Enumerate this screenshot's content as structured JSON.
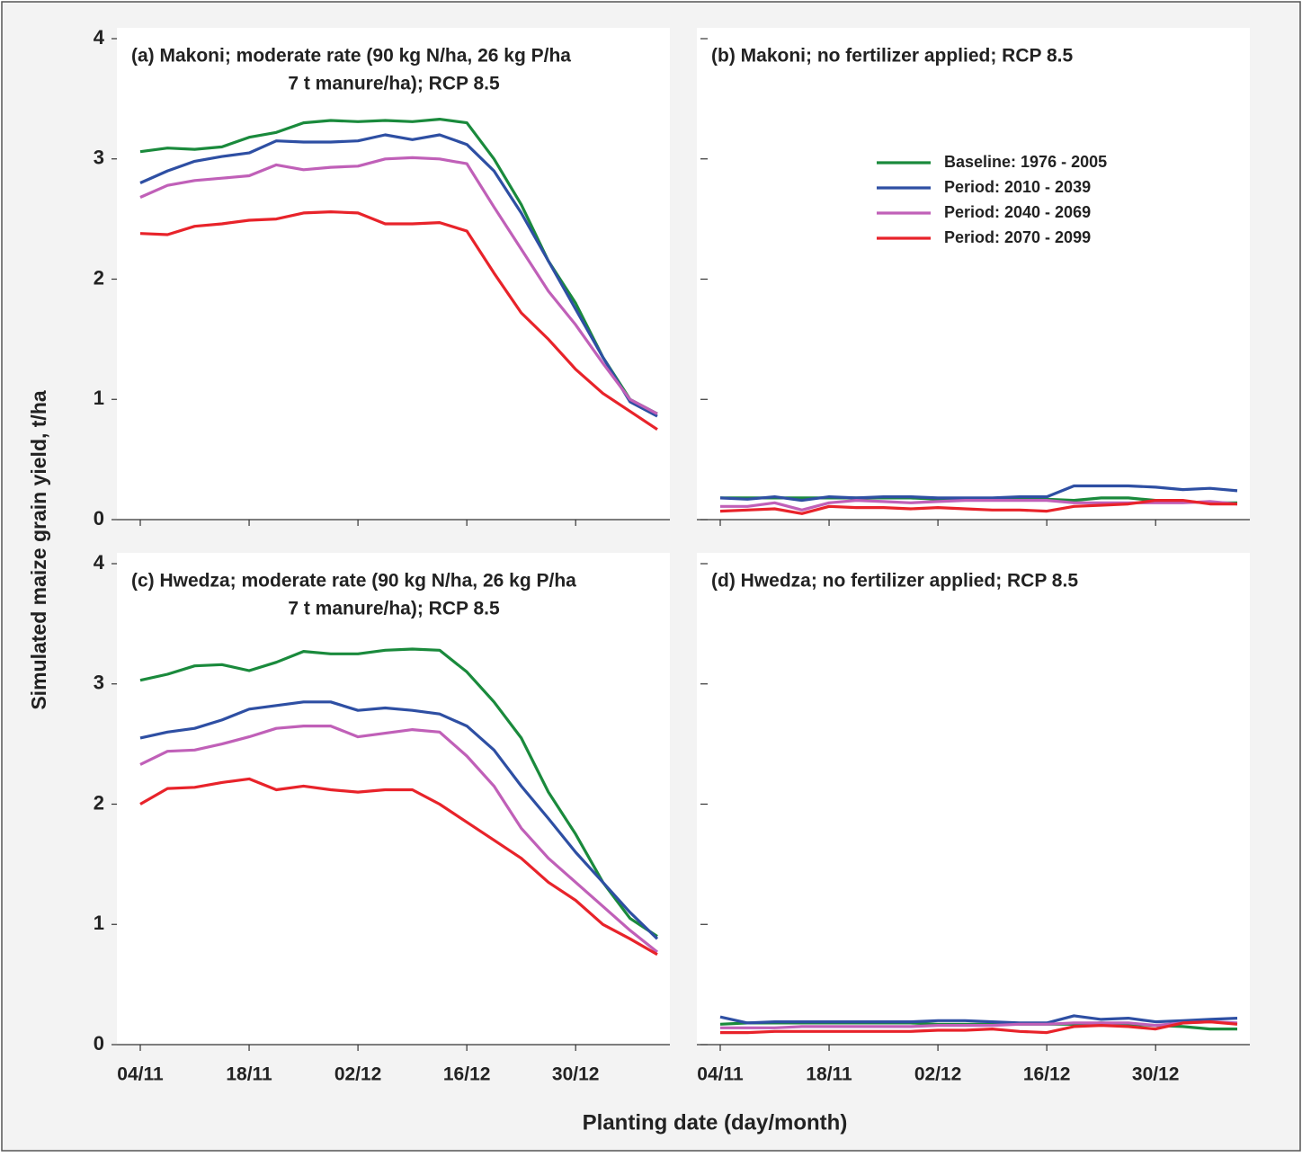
{
  "x_label": "Planting date (day/month)",
  "y_label": "Simulated maize grain yield, t/ha",
  "chart_data": [
    {
      "type": "line",
      "title": [
        "(a) Makoni; moderate rate (90 kg N/ha, 26 kg P/ha",
        "7 t manure/ha); RCP 8.5"
      ],
      "categories": [
        "04/11",
        null,
        null,
        null,
        "18/11",
        null,
        null,
        null,
        "02/12",
        null,
        null,
        null,
        "16/12",
        null,
        null,
        null,
        "30/12",
        null,
        null,
        null
      ],
      "xtick_labels": false,
      "ytick_labels": true,
      "ylim": [
        0,
        4
      ],
      "yticks": [
        0,
        1,
        2,
        3,
        4
      ],
      "series": [
        {
          "color": "#1a8a3c",
          "values": [
            3.06,
            3.09,
            3.08,
            3.1,
            3.18,
            3.22,
            3.3,
            3.32,
            3.31,
            3.32,
            3.31,
            3.33,
            3.3,
            3.0,
            2.62,
            2.15,
            1.8,
            1.35,
            1.0,
            0.88
          ]
        },
        {
          "color": "#2e4fa3",
          "values": [
            2.8,
            2.9,
            2.98,
            3.02,
            3.05,
            3.15,
            3.14,
            3.14,
            3.15,
            3.2,
            3.16,
            3.2,
            3.12,
            2.9,
            2.55,
            2.15,
            1.75,
            1.35,
            0.98,
            0.86
          ]
        },
        {
          "color": "#c060b8",
          "values": [
            2.68,
            2.78,
            2.82,
            2.84,
            2.86,
            2.95,
            2.91,
            2.93,
            2.94,
            3.0,
            3.01,
            3.0,
            2.96,
            2.6,
            2.25,
            1.9,
            1.62,
            1.3,
            1.0,
            0.88
          ]
        },
        {
          "color": "#e8232a",
          "values": [
            2.38,
            2.37,
            2.44,
            2.46,
            2.49,
            2.5,
            2.55,
            2.56,
            2.55,
            2.46,
            2.46,
            2.47,
            2.4,
            2.05,
            1.72,
            1.5,
            1.25,
            1.05,
            0.9,
            0.75
          ]
        }
      ]
    },
    {
      "type": "line",
      "title": [
        "(b) Makoni; no fertilizer applied; RCP 8.5"
      ],
      "categories": [
        "04/11",
        null,
        null,
        null,
        "18/11",
        null,
        null,
        null,
        "02/12",
        null,
        null,
        null,
        "16/12",
        null,
        null,
        null,
        "30/12",
        null,
        null,
        null
      ],
      "xtick_labels": false,
      "ytick_labels": false,
      "ylim": [
        0,
        4
      ],
      "yticks": [
        0,
        1,
        2,
        3,
        4
      ],
      "legend": "upper right",
      "series": [
        {
          "name": "Baseline: 1976 - 2005",
          "color": "#1a8a3c",
          "values": [
            0.18,
            0.18,
            0.18,
            0.18,
            0.18,
            0.18,
            0.18,
            0.18,
            0.17,
            0.17,
            0.17,
            0.17,
            0.17,
            0.16,
            0.18,
            0.18,
            0.16,
            0.15,
            0.14,
            0.14
          ]
        },
        {
          "name": "Period: 2010 - 2039",
          "color": "#2e4fa3",
          "values": [
            0.18,
            0.17,
            0.19,
            0.16,
            0.19,
            0.18,
            0.19,
            0.19,
            0.18,
            0.18,
            0.18,
            0.19,
            0.19,
            0.28,
            0.28,
            0.28,
            0.27,
            0.25,
            0.26,
            0.24
          ]
        },
        {
          "name": "Period: 2040 - 2069",
          "color": "#c060b8",
          "values": [
            0.11,
            0.11,
            0.14,
            0.08,
            0.14,
            0.16,
            0.15,
            0.14,
            0.15,
            0.16,
            0.16,
            0.16,
            0.16,
            0.14,
            0.14,
            0.14,
            0.14,
            0.14,
            0.15,
            0.13
          ]
        },
        {
          "name": "Period: 2070 - 2099",
          "color": "#e8232a",
          "values": [
            0.07,
            0.08,
            0.09,
            0.05,
            0.11,
            0.1,
            0.1,
            0.09,
            0.1,
            0.09,
            0.08,
            0.08,
            0.07,
            0.11,
            0.12,
            0.13,
            0.16,
            0.16,
            0.13,
            0.13
          ]
        }
      ]
    },
    {
      "type": "line",
      "title": [
        "(c) Hwedza; moderate rate (90 kg N/ha, 26 kg P/ha",
        "7 t manure/ha); RCP 8.5"
      ],
      "categories": [
        "04/11",
        null,
        null,
        null,
        "18/11",
        null,
        null,
        null,
        "02/12",
        null,
        null,
        null,
        "16/12",
        null,
        null,
        null,
        "30/12",
        null,
        null,
        null
      ],
      "xtick_labels": true,
      "ytick_labels": true,
      "ylim": [
        0,
        4
      ],
      "yticks": [
        0,
        1,
        2,
        3,
        4
      ],
      "series": [
        {
          "color": "#1a8a3c",
          "values": [
            3.03,
            3.08,
            3.15,
            3.16,
            3.11,
            3.18,
            3.27,
            3.25,
            3.25,
            3.28,
            3.29,
            3.28,
            3.1,
            2.85,
            2.55,
            2.1,
            1.75,
            1.35,
            1.05,
            0.9
          ]
        },
        {
          "color": "#2e4fa3",
          "values": [
            2.55,
            2.6,
            2.63,
            2.7,
            2.79,
            2.82,
            2.85,
            2.85,
            2.78,
            2.8,
            2.78,
            2.75,
            2.65,
            2.45,
            2.15,
            1.88,
            1.6,
            1.35,
            1.1,
            0.88
          ]
        },
        {
          "color": "#c060b8",
          "values": [
            2.33,
            2.44,
            2.45,
            2.5,
            2.56,
            2.63,
            2.65,
            2.65,
            2.56,
            2.59,
            2.62,
            2.6,
            2.4,
            2.15,
            1.8,
            1.55,
            1.35,
            1.15,
            0.95,
            0.77
          ]
        },
        {
          "color": "#e8232a",
          "values": [
            2.0,
            2.13,
            2.14,
            2.18,
            2.21,
            2.12,
            2.15,
            2.12,
            2.1,
            2.12,
            2.12,
            2.0,
            1.85,
            1.7,
            1.55,
            1.35,
            1.2,
            1.0,
            0.88,
            0.75
          ]
        }
      ]
    },
    {
      "type": "line",
      "title": [
        "(d) Hwedza; no fertilizer applied; RCP 8.5"
      ],
      "categories": [
        "04/11",
        null,
        null,
        null,
        "18/11",
        null,
        null,
        null,
        "02/12",
        null,
        null,
        null,
        "16/12",
        null,
        null,
        null,
        "30/12",
        null,
        null,
        null
      ],
      "xtick_labels": true,
      "ytick_labels": false,
      "ylim": [
        0,
        4
      ],
      "yticks": [
        0,
        1,
        2,
        3,
        4
      ],
      "series": [
        {
          "color": "#1a8a3c",
          "values": [
            0.17,
            0.18,
            0.18,
            0.18,
            0.18,
            0.18,
            0.18,
            0.18,
            0.17,
            0.17,
            0.17,
            0.17,
            0.17,
            0.17,
            0.18,
            0.17,
            0.16,
            0.15,
            0.13,
            0.13
          ]
        },
        {
          "color": "#2e4fa3",
          "values": [
            0.23,
            0.18,
            0.19,
            0.19,
            0.19,
            0.19,
            0.19,
            0.19,
            0.2,
            0.2,
            0.19,
            0.18,
            0.18,
            0.24,
            0.21,
            0.22,
            0.19,
            0.2,
            0.21,
            0.22
          ]
        },
        {
          "color": "#c060b8",
          "values": [
            0.14,
            0.14,
            0.14,
            0.15,
            0.15,
            0.15,
            0.15,
            0.15,
            0.16,
            0.16,
            0.16,
            0.17,
            0.17,
            0.18,
            0.18,
            0.18,
            0.16,
            0.18,
            0.19,
            0.18
          ]
        },
        {
          "color": "#e8232a",
          "values": [
            0.1,
            0.1,
            0.11,
            0.11,
            0.11,
            0.11,
            0.11,
            0.11,
            0.12,
            0.12,
            0.13,
            0.11,
            0.1,
            0.15,
            0.16,
            0.15,
            0.13,
            0.18,
            0.19,
            0.17
          ]
        }
      ]
    }
  ]
}
